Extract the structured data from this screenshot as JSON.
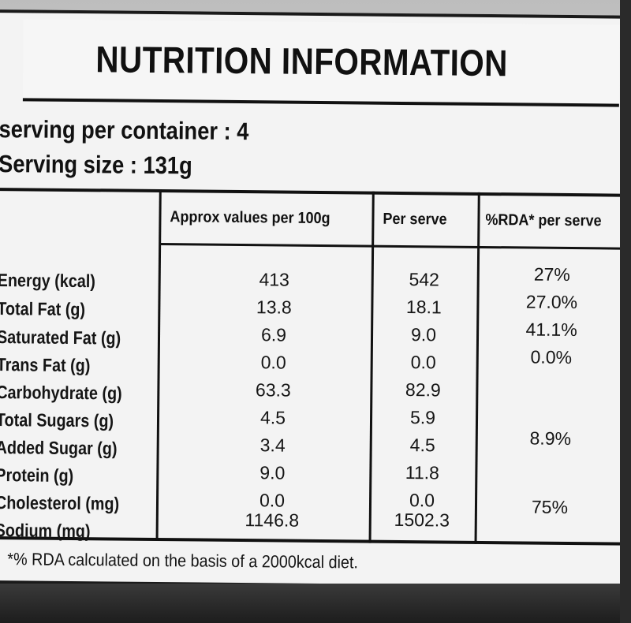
{
  "label": {
    "title": "NUTRITION INFORMATION",
    "serving_per_container": "serving per container : 4",
    "serving_size": "Serving size : 131g"
  },
  "table": {
    "headers": [
      "Approx values per 100g",
      "Per serve",
      "%RDA* per serve"
    ],
    "rows": [
      {
        "name": "Energy (kcal)",
        "per100g": "413",
        "per_serve": "542",
        "rda": "27%"
      },
      {
        "name": "Total Fat (g)",
        "per100g": "13.8",
        "per_serve": "18.1",
        "rda": "27.0%"
      },
      {
        "name": "Saturated Fat (g)",
        "per100g": "6.9",
        "per_serve": "9.0",
        "rda": "41.1%"
      },
      {
        "name": "Trans Fat (g)",
        "per100g": "0.0",
        "per_serve": "0.0",
        "rda": "0.0%"
      },
      {
        "name": "Carbohydrate (g)",
        "per100g": "63.3",
        "per_serve": "82.9",
        "rda": ""
      },
      {
        "name": "Total Sugars (g)",
        "per100g": "4.5",
        "per_serve": "5.9",
        "rda": ""
      },
      {
        "name": "Added Sugar (g)",
        "per100g": "3.4",
        "per_serve": "4.5",
        "rda": "8.9%"
      },
      {
        "name": "Protein (g)",
        "per100g": "9.0",
        "per_serve": "11.8",
        "rda": ""
      },
      {
        "name": "Cholesterol (mg)",
        "per100g": "0.0",
        "per_serve": "0.0",
        "rda": ""
      },
      {
        "name": "Sodium (mg)",
        "per100g": "1146.8",
        "per_serve": "1502.3",
        "rda": "75%"
      }
    ]
  },
  "footnote": "*% RDA calculated on the basis of a 2000kcal diet."
}
